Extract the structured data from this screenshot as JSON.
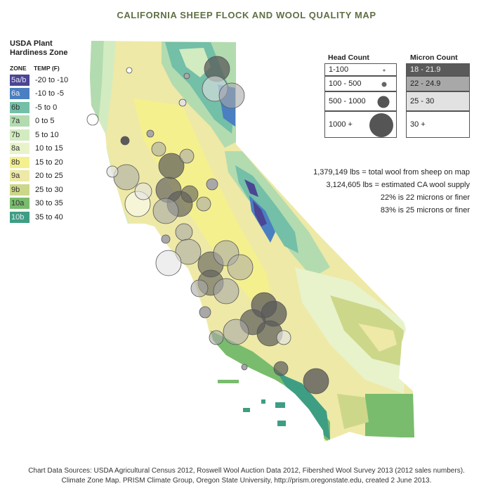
{
  "title": "CALIFORNIA SHEEP FLOCK AND WOOL QUALITY MAP",
  "zone_legend": {
    "title_line1": "USDA Plant",
    "title_line2": "Hardiness Zone",
    "col_zone": "ZONE",
    "col_temp": "TEMP (F)",
    "zones": [
      {
        "zone": "5a/b",
        "temp": "-20 to -10",
        "color": "#4b4593"
      },
      {
        "zone": "6a",
        "temp": "-10 to -5",
        "color": "#4a7fc1"
      },
      {
        "zone": "6b",
        "temp": "-5 to 0",
        "color": "#73bfa8"
      },
      {
        "zone": "7a",
        "temp": "0 to 5",
        "color": "#b3dbb0"
      },
      {
        "zone": "7b",
        "temp": "5 to 10",
        "color": "#d3ebc1"
      },
      {
        "zone": "8a",
        "temp": "10 to 15",
        "color": "#e8f3cb"
      },
      {
        "zone": "8b",
        "temp": "15 to 20",
        "color": "#f5f08e"
      },
      {
        "zone": "9a",
        "temp": "20 to 25",
        "color": "#eee9a6"
      },
      {
        "zone": "9b",
        "temp": "25 to 30",
        "color": "#cdd78a"
      },
      {
        "zone": "10a",
        "temp": "30 to 35",
        "color": "#79bc6d"
      },
      {
        "zone": "10b",
        "temp": "35 to 40",
        "color": "#3e9e83"
      }
    ]
  },
  "head_count_legend": {
    "title": "Head Count",
    "items": [
      "1-100",
      "100 - 500",
      "500 - 1000",
      "1000 +"
    ]
  },
  "micron_legend": {
    "title": "Micron Count",
    "items": [
      {
        "label": "18 - 21.9",
        "color": "#5a5a5a"
      },
      {
        "label": "22 - 24.9",
        "color": "#a8a8a8"
      },
      {
        "label": "25 - 30",
        "color": "#e2e2e2"
      },
      {
        "label": "30 +",
        "color": "#ffffff"
      }
    ]
  },
  "stats": {
    "line1": "1,379,149 lbs = total wool from sheep on map",
    "line2": "3,124,605 lbs = estimated CA wool supply",
    "line3": "22% is 22 microns or finer",
    "line4": "83% is 25 microns or finer"
  },
  "credits": {
    "line1": "Chart Data Sources: USDA Agricultural Census 2012, Roswell Wool Auction Data 2012, Fibershed Wool Survey 2013 (2012 sales numbers).",
    "line2": "Climate Zone Map. PRISM Climate Group, Oregon State University, http://prism.oregonstate.edu, created 2 June 2013."
  }
}
